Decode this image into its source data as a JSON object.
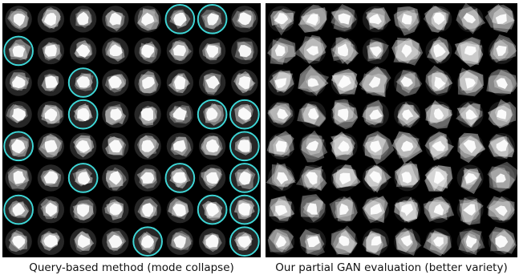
{
  "colors": {
    "panel_background": "#000000",
    "highlight_circle": "#3fd6d6",
    "sample_fill": "#ffffff"
  },
  "figure": {
    "grid_rows": 8,
    "grid_cols": 8,
    "left_panel": {
      "caption": "Query-based method (mode collapse)",
      "circled_cells": [
        [
          0,
          5
        ],
        [
          0,
          6
        ],
        [
          1,
          0
        ],
        [
          2,
          2
        ],
        [
          3,
          2
        ],
        [
          3,
          6
        ],
        [
          3,
          7
        ],
        [
          4,
          0
        ],
        [
          4,
          7
        ],
        [
          5,
          2
        ],
        [
          5,
          5
        ],
        [
          5,
          7
        ],
        [
          6,
          0
        ],
        [
          6,
          6
        ],
        [
          6,
          7
        ],
        [
          7,
          4
        ],
        [
          7,
          7
        ]
      ]
    },
    "right_panel": {
      "caption": "Our partial GAN evaluation (better variety)"
    }
  }
}
